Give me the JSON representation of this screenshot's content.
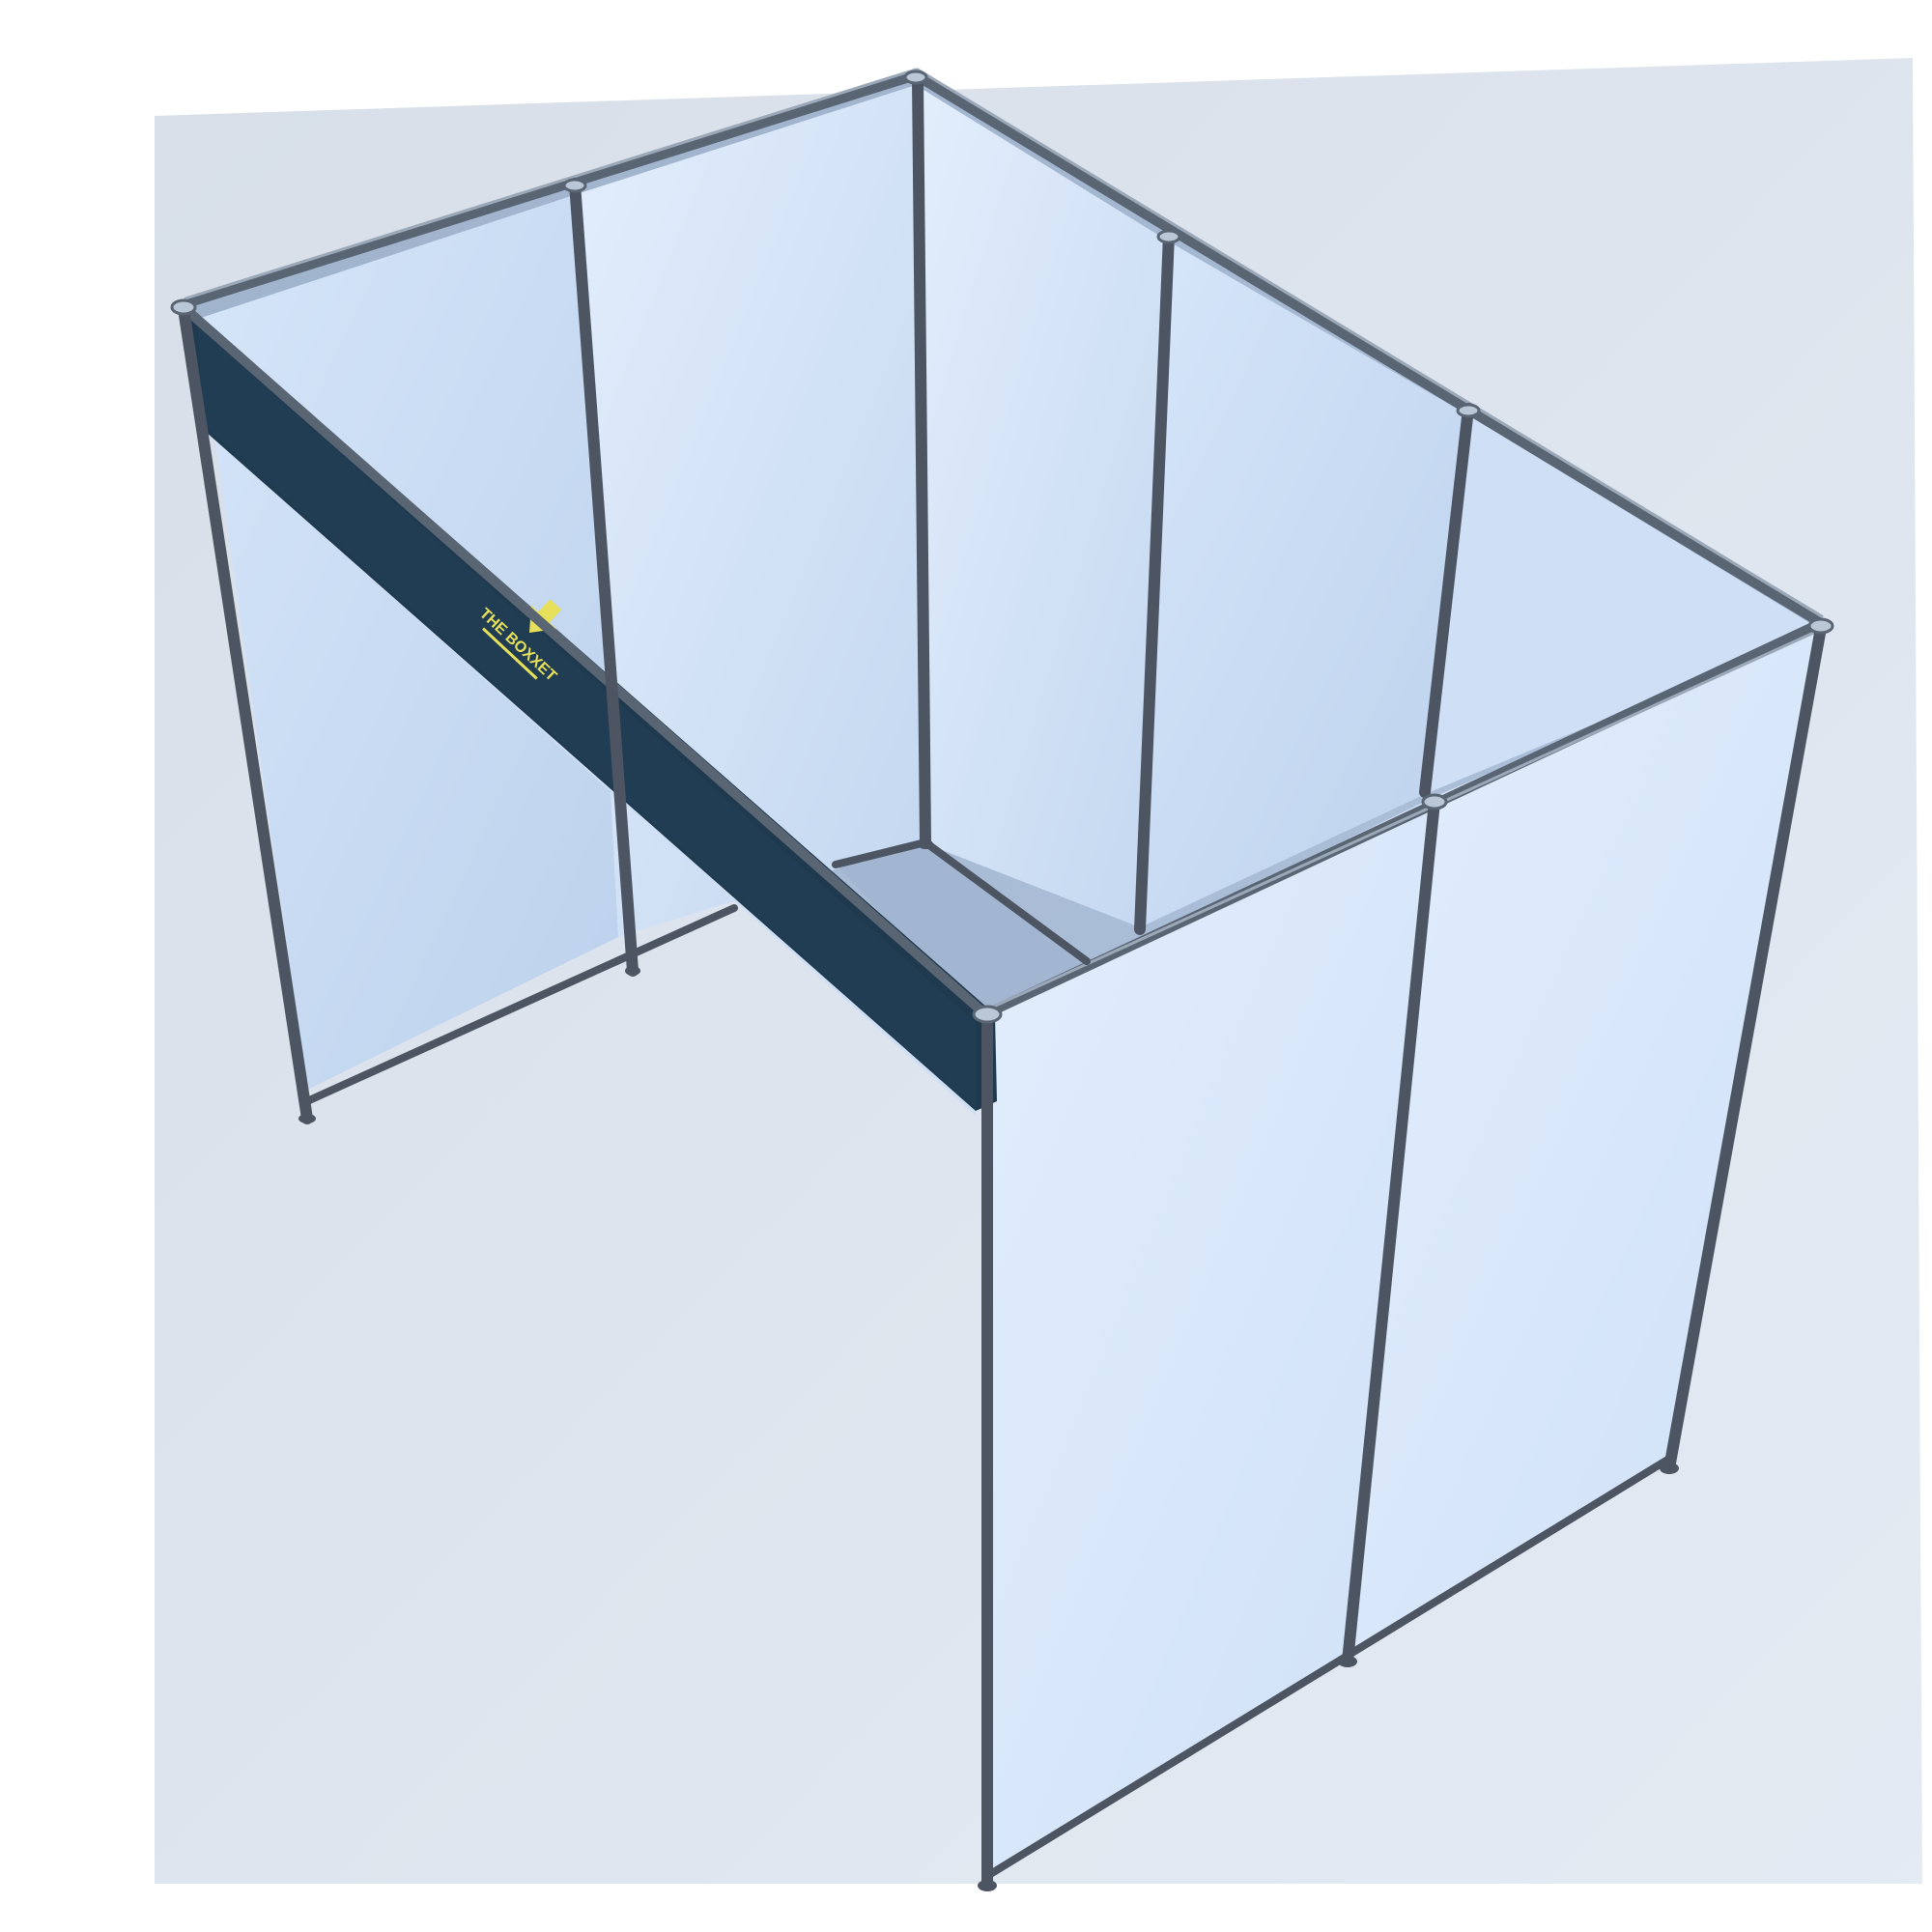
{
  "scene": {
    "subject": "exhibition-booth-shell-scheme",
    "colors": {
      "background": "#ffffff",
      "panel_light": "#dbe9fb",
      "panel_mid": "#c5d9f1",
      "panel_shadow": "#a7bad4",
      "frame": "#4c5561",
      "frame_highlight": "#7e8b9b",
      "fascia": "#1f3a4f",
      "logo": "#e6e05a"
    },
    "fascia_logo": {
      "text": "THE BOXXET"
    }
  }
}
